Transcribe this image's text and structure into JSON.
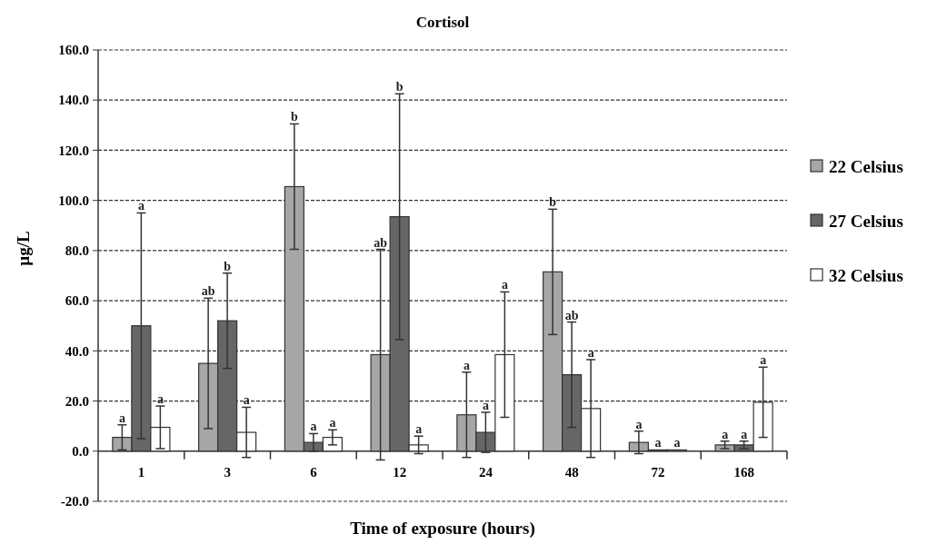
{
  "chart_data": {
    "type": "bar",
    "title": "Cortisol",
    "xlabel": "Time of exposure (hours)",
    "ylabel": "µg/L",
    "categories": [
      "1",
      "3",
      "6",
      "12",
      "24",
      "48",
      "72",
      "168"
    ],
    "series": [
      {
        "name": "22 Celsius",
        "color": "#a6a6a6",
        "values": [
          5.5,
          35,
          105.5,
          38.5,
          14.5,
          71.5,
          3.5,
          2.5
        ],
        "errors": [
          5,
          26,
          25,
          42,
          17,
          25,
          4.5,
          1.5
        ]
      },
      {
        "name": "27 Celsius",
        "color": "#666666",
        "values": [
          50,
          52,
          3.5,
          93.5,
          7.5,
          30.5,
          0.5,
          2.5
        ],
        "errors": [
          45,
          19,
          3.5,
          49,
          8,
          21,
          null,
          1.5
        ]
      },
      {
        "name": "32 Celsius",
        "color": "#ffffff",
        "values": [
          9.5,
          7.5,
          5.5,
          2.5,
          38.5,
          17,
          0.5,
          19.5
        ],
        "errors": [
          8.5,
          10,
          3,
          3.5,
          25,
          19.5,
          null,
          14
        ]
      }
    ],
    "annotations": [
      "a",
      "a",
      "a",
      "ab",
      "b",
      "a",
      "b",
      "a",
      "a",
      "ab",
      "b",
      "a",
      "a",
      "a",
      "a",
      "b",
      "ab",
      "a",
      "a",
      "a",
      "a",
      "a",
      "a",
      "a"
    ],
    "ylim": [
      -20,
      160
    ],
    "yticks": [
      {
        "value": -20,
        "label": "-20.0"
      },
      {
        "value": 0,
        "label": "0.0"
      },
      {
        "value": 20,
        "label": "20.0"
      },
      {
        "value": 40,
        "label": "40.0"
      },
      {
        "value": 60,
        "label": "60.0"
      },
      {
        "value": 80,
        "label": "80.0"
      },
      {
        "value": 100,
        "label": "100.0"
      },
      {
        "value": 120,
        "label": "120.0"
      },
      {
        "value": 140,
        "label": "140.0"
      },
      {
        "value": 160,
        "label": "160.0"
      }
    ],
    "grid": "y",
    "legend": "right"
  }
}
